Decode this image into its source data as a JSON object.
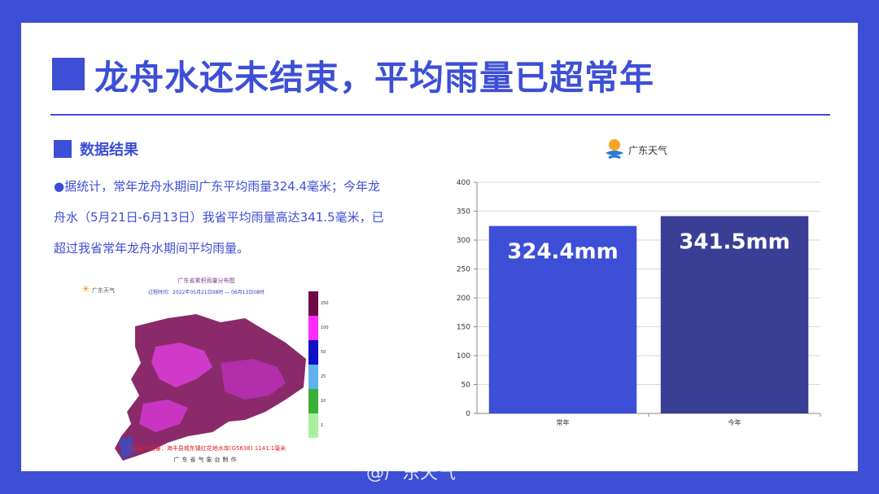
{
  "slide": {
    "title": "龙舟水还未结束，平均雨量已超常年",
    "section_title": "数据结果",
    "paragraph": "●据统计，常年龙舟水期间广东平均雨量324.4毫米；今年龙舟水（5月21日-6月13日）我省平均雨量高达341.5毫米，已超过我省常年龙舟水期间平均雨量。"
  },
  "map": {
    "title": "广东省累积雨量分布图",
    "subtitle": "过程时间：2022年05月21日08时 — 06月13日08时",
    "logo_text": "广东天气",
    "footer_max": "全省最大雨量：海丰县城东镇红花地水库(G5638) 1141.1毫米",
    "footer_org": "广东省气象台制作",
    "legend_colors": [
      "#6e0a45",
      "#ff2bff",
      "#1010c8",
      "#5fb0f0",
      "#38b038",
      "#a8f0a0"
    ],
    "legend_labels": [
      "250",
      "100",
      "50",
      "25",
      "10",
      "1"
    ]
  },
  "chart_logo": {
    "text": "广东天气"
  },
  "chart_data": {
    "type": "bar",
    "categories": [
      "常年",
      "今年"
    ],
    "values": [
      324.4,
      341.5
    ],
    "data_labels": [
      "324.4mm",
      "341.5mm"
    ],
    "bar_colors": [
      "#3d4fd6",
      "#3a3f96"
    ],
    "ylim": [
      0,
      400
    ],
    "yticks": [
      0,
      50,
      100,
      150,
      200,
      250,
      300,
      350,
      400
    ],
    "grid": true
  },
  "watermark": "@广东天气"
}
